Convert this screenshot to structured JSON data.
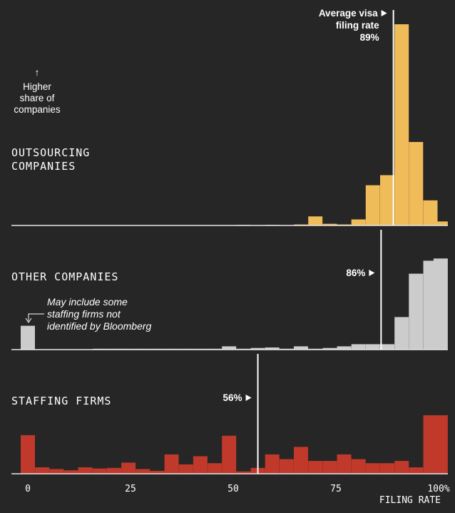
{
  "chart_data": {
    "type": "bar",
    "xlabel": "FILING RATE",
    "xlim": [
      0,
      100
    ],
    "x_ticks": [
      {
        "value": 0,
        "label": "0"
      },
      {
        "value": 25,
        "label": "25"
      },
      {
        "value": 50,
        "label": "50"
      },
      {
        "value": 75,
        "label": "75"
      },
      {
        "value": 100,
        "label": "100%"
      }
    ],
    "bin_centers": [
      0,
      3.5,
      7,
      10.5,
      14,
      17.5,
      21,
      24.5,
      28,
      31.5,
      35,
      38.5,
      42,
      45.5,
      49,
      52.5,
      56,
      59.5,
      63,
      66.5,
      70,
      73.5,
      77,
      80.5,
      84,
      87.5,
      91,
      94.5,
      98,
      100.5
    ],
    "y_axis_annotation": {
      "arrow": "↑",
      "lines": [
        "Higher",
        "share of",
        "companies"
      ]
    },
    "panels": [
      {
        "name": "OUTSOURCING COMPANIES",
        "label_lines": [
          "OUTSOURCING",
          "COMPANIES"
        ],
        "color": "#f0bb59",
        "ymax": 1.0,
        "values": [
          0,
          0,
          0,
          0,
          0,
          0,
          0,
          0,
          0,
          0,
          0,
          0,
          0,
          0,
          0,
          0.003,
          0,
          0.003,
          0,
          0.005,
          0.045,
          0.008,
          0.005,
          0.03,
          0.2,
          0.25,
          1.0,
          0.415,
          0.125,
          0.02
        ],
        "average": 89,
        "average_label_lines": [
          "Average visa",
          "filing rate",
          "89%"
        ]
      },
      {
        "name": "OTHER COMPANIES",
        "label_lines": [
          "OTHER COMPANIES"
        ],
        "color": "#cccccc",
        "ymax": 1.0,
        "values": [
          0.22,
          0.004,
          0.004,
          0.004,
          0.004,
          0.008,
          0.008,
          0.008,
          0.008,
          0.008,
          0.008,
          0.008,
          0.008,
          0.008,
          0.03,
          0.008,
          0.015,
          0.02,
          0.008,
          0.03,
          0.008,
          0.015,
          0.03,
          0.05,
          0.05,
          0.05,
          0.3,
          0.7,
          0.82,
          0.84
        ],
        "average": 86,
        "average_label_lines": [
          "86%"
        ],
        "note_lines": [
          "May include some",
          "staffing firms not",
          "identified by Bloomberg"
        ]
      },
      {
        "name": "STAFFING FIRMS",
        "label_lines": [
          "STAFFING FIRMS"
        ],
        "color": "#c0392b",
        "ymax": 1.0,
        "values": [
          0.66,
          0.11,
          0.08,
          0.06,
          0.11,
          0.09,
          0.1,
          0.19,
          0.08,
          0.05,
          0.33,
          0.16,
          0.3,
          0.18,
          0.65,
          0.04,
          0.1,
          0.33,
          0.25,
          0.46,
          0.22,
          0.22,
          0.33,
          0.25,
          0.18,
          0.18,
          0.22,
          0.11,
          1.0,
          1.0
        ],
        "average": 56,
        "average_label_lines": [
          "56%"
        ]
      }
    ]
  }
}
